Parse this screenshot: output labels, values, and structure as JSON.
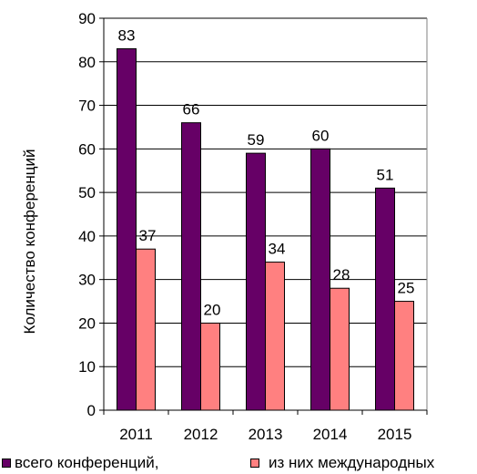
{
  "chart_data": {
    "type": "bar",
    "categories": [
      "2011",
      "2012",
      "2013",
      "2014",
      "2015"
    ],
    "series": [
      {
        "name": "всего конференций,",
        "values": [
          83,
          66,
          59,
          60,
          51
        ],
        "color": "#660066"
      },
      {
        "name": "из них международных",
        "values": [
          37,
          20,
          34,
          28,
          25
        ],
        "color": "#ff8080"
      }
    ],
    "ylabel": "Количество конференций",
    "ylim": [
      0,
      90
    ],
    "yticks": [
      0,
      10,
      20,
      30,
      40,
      50,
      60,
      70,
      80,
      90
    ],
    "grid": true,
    "legend": "bottom"
  }
}
